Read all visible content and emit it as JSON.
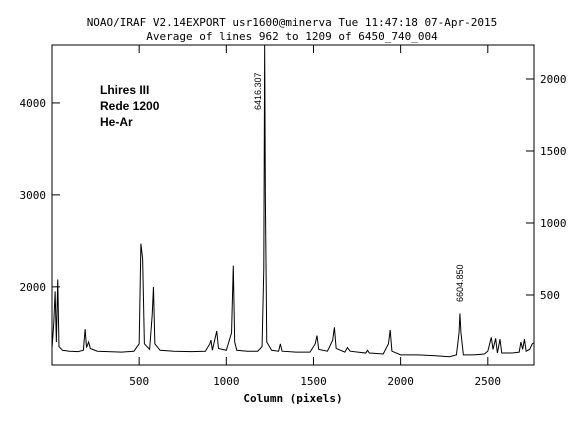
{
  "chart_data": {
    "type": "line",
    "title": "NOAO/IRAF V2.14EXPORT usr1600@minerva Tue 11:47:18 07-Apr-2015",
    "subtitle": "Average of lines 962 to 1209 of 6450_740_004",
    "x_label": "Column (pixels)",
    "annotations": [
      "6416.307",
      "6604.850",
      "Lhires III",
      "Rede 1200",
      "He-Ar"
    ],
    "xlim": [
      0,
      2765
    ],
    "xticks": [
      500,
      1000,
      1500,
      2000,
      2500
    ],
    "ylim": [
      1150,
      4630
    ],
    "yticks": [
      2000,
      3000,
      4000
    ],
    "y2lim": [
      14,
      2236
    ],
    "y2ticks": [
      500,
      1000,
      1500,
      2000
    ],
    "grid": false,
    "series": [
      {
        "color": "#000000",
        "x": [
          0,
          10,
          18,
          25,
          33,
          40,
          60,
          100,
          150,
          180,
          190,
          198,
          210,
          220,
          260,
          320,
          400,
          470,
          500,
          510,
          520,
          530,
          560,
          575,
          582,
          590,
          620,
          700,
          800,
          880,
          905,
          912,
          920,
          945,
          955,
          1000,
          1030,
          1040,
          1048,
          1060,
          1120,
          1180,
          1205,
          1215,
          1220,
          1224,
          1232,
          1260,
          1300,
          1310,
          1320,
          1400,
          1480,
          1510,
          1520,
          1530,
          1580,
          1610,
          1620,
          1630,
          1680,
          1695,
          1710,
          1800,
          1810,
          1820,
          1900,
          1930,
          1940,
          1950,
          2000,
          2100,
          2200,
          2280,
          2320,
          2335,
          2340,
          2346,
          2360,
          2420,
          2480,
          2500,
          2520,
          2530,
          2545,
          2555,
          2570,
          2580,
          2640,
          2680,
          2690,
          2700,
          2710,
          2720,
          2740,
          2755,
          2764
        ],
        "values": [
          1330,
          1600,
          1950,
          1400,
          2080,
          1350,
          1310,
          1300,
          1295,
          1310,
          1540,
          1340,
          1400,
          1330,
          1300,
          1295,
          1290,
          1300,
          1380,
          2470,
          2300,
          1380,
          1320,
          1700,
          2000,
          1380,
          1310,
          1300,
          1295,
          1300,
          1380,
          1420,
          1310,
          1520,
          1330,
          1310,
          1500,
          2230,
          1400,
          1310,
          1300,
          1300,
          1350,
          2200,
          4630,
          2980,
          1400,
          1310,
          1300,
          1380,
          1300,
          1290,
          1290,
          1380,
          1470,
          1320,
          1300,
          1420,
          1560,
          1330,
          1290,
          1340,
          1300,
          1280,
          1310,
          1280,
          1270,
          1380,
          1530,
          1300,
          1260,
          1260,
          1250,
          1240,
          1260,
          1500,
          1710,
          1500,
          1260,
          1260,
          1270,
          1300,
          1450,
          1320,
          1440,
          1280,
          1430,
          1280,
          1280,
          1290,
          1400,
          1320,
          1430,
          1300,
          1320,
          1380,
          1390
        ]
      }
    ]
  }
}
